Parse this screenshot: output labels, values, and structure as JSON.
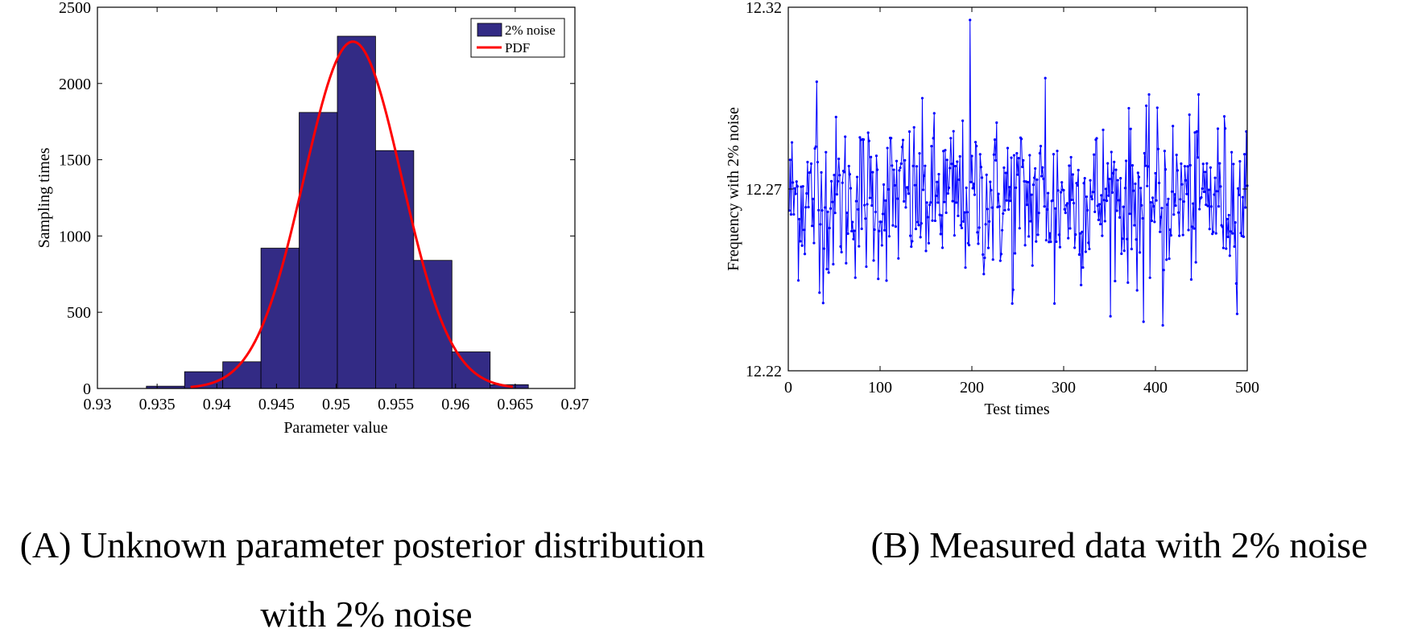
{
  "captions": {
    "a_line1": "(A) Unknown parameter posterior distribution",
    "a_line2": "with 2% noise",
    "b": "(B)   Measured data with 2% noise"
  },
  "colors": {
    "bar_fill": "#332b85",
    "pdf_line": "#ff0000",
    "line_series": "#0000ff"
  },
  "chart_data": [
    {
      "type": "bar",
      "subtype": "histogram",
      "title": "",
      "xlabel": "Parameter value",
      "ylabel": "Sampling times",
      "xlim": [
        0.93,
        0.97
      ],
      "ylim": [
        0,
        2500
      ],
      "x_ticks": [
        "0.93",
        "0.935",
        "0.94",
        "0.945",
        "0.95",
        "0.955",
        "0.96",
        "0.965",
        "0.97"
      ],
      "y_ticks": [
        "0",
        "500",
        "1000",
        "1500",
        "2000",
        "2500"
      ],
      "bins": [
        {
          "x0": 0.9341,
          "x1": 0.9373,
          "value": 15
        },
        {
          "x0": 0.9373,
          "x1": 0.9405,
          "value": 110
        },
        {
          "x0": 0.9405,
          "x1": 0.9437,
          "value": 175
        },
        {
          "x0": 0.9437,
          "x1": 0.9469,
          "value": 920
        },
        {
          "x0": 0.9469,
          "x1": 0.9501,
          "value": 1810
        },
        {
          "x0": 0.9501,
          "x1": 0.9533,
          "value": 2310
        },
        {
          "x0": 0.9533,
          "x1": 0.9565,
          "value": 1560
        },
        {
          "x0": 0.9565,
          "x1": 0.9597,
          "value": 840
        },
        {
          "x0": 0.9597,
          "x1": 0.9629,
          "value": 240
        },
        {
          "x0": 0.9629,
          "x1": 0.9661,
          "value": 25
        }
      ],
      "pdf": {
        "mean": 0.9514,
        "std": 0.0041,
        "peak": 2275,
        "x_range": [
          0.9378,
          0.9648
        ]
      },
      "series": [
        {
          "name": "2% noise",
          "kind": "histogram"
        },
        {
          "name": "PDF",
          "kind": "line"
        }
      ],
      "legend": "top-right",
      "grid": false
    },
    {
      "type": "line",
      "title": "",
      "xlabel": "Test times",
      "ylabel": "Frequency with 2% noise",
      "xlim": [
        0,
        500
      ],
      "ylim": [
        12.22,
        12.32
      ],
      "x_ticks": [
        "0",
        "100",
        "200",
        "300",
        "400",
        "500"
      ],
      "y_ticks": [
        "12.22",
        "12.27",
        "12.32"
      ],
      "n_points": 500,
      "mean": 12.2675,
      "std": 0.011,
      "notable_points": [
        {
          "x": 31,
          "y": 12.2995
        },
        {
          "x": 34,
          "y": 12.2415
        },
        {
          "x": 198,
          "y": 12.3165
        },
        {
          "x": 244,
          "y": 12.2385
        },
        {
          "x": 280,
          "y": 12.3005
        },
        {
          "x": 290,
          "y": 12.2385
        },
        {
          "x": 387,
          "y": 12.2335
        },
        {
          "x": 408,
          "y": 12.2325
        }
      ],
      "grid": false
    }
  ]
}
